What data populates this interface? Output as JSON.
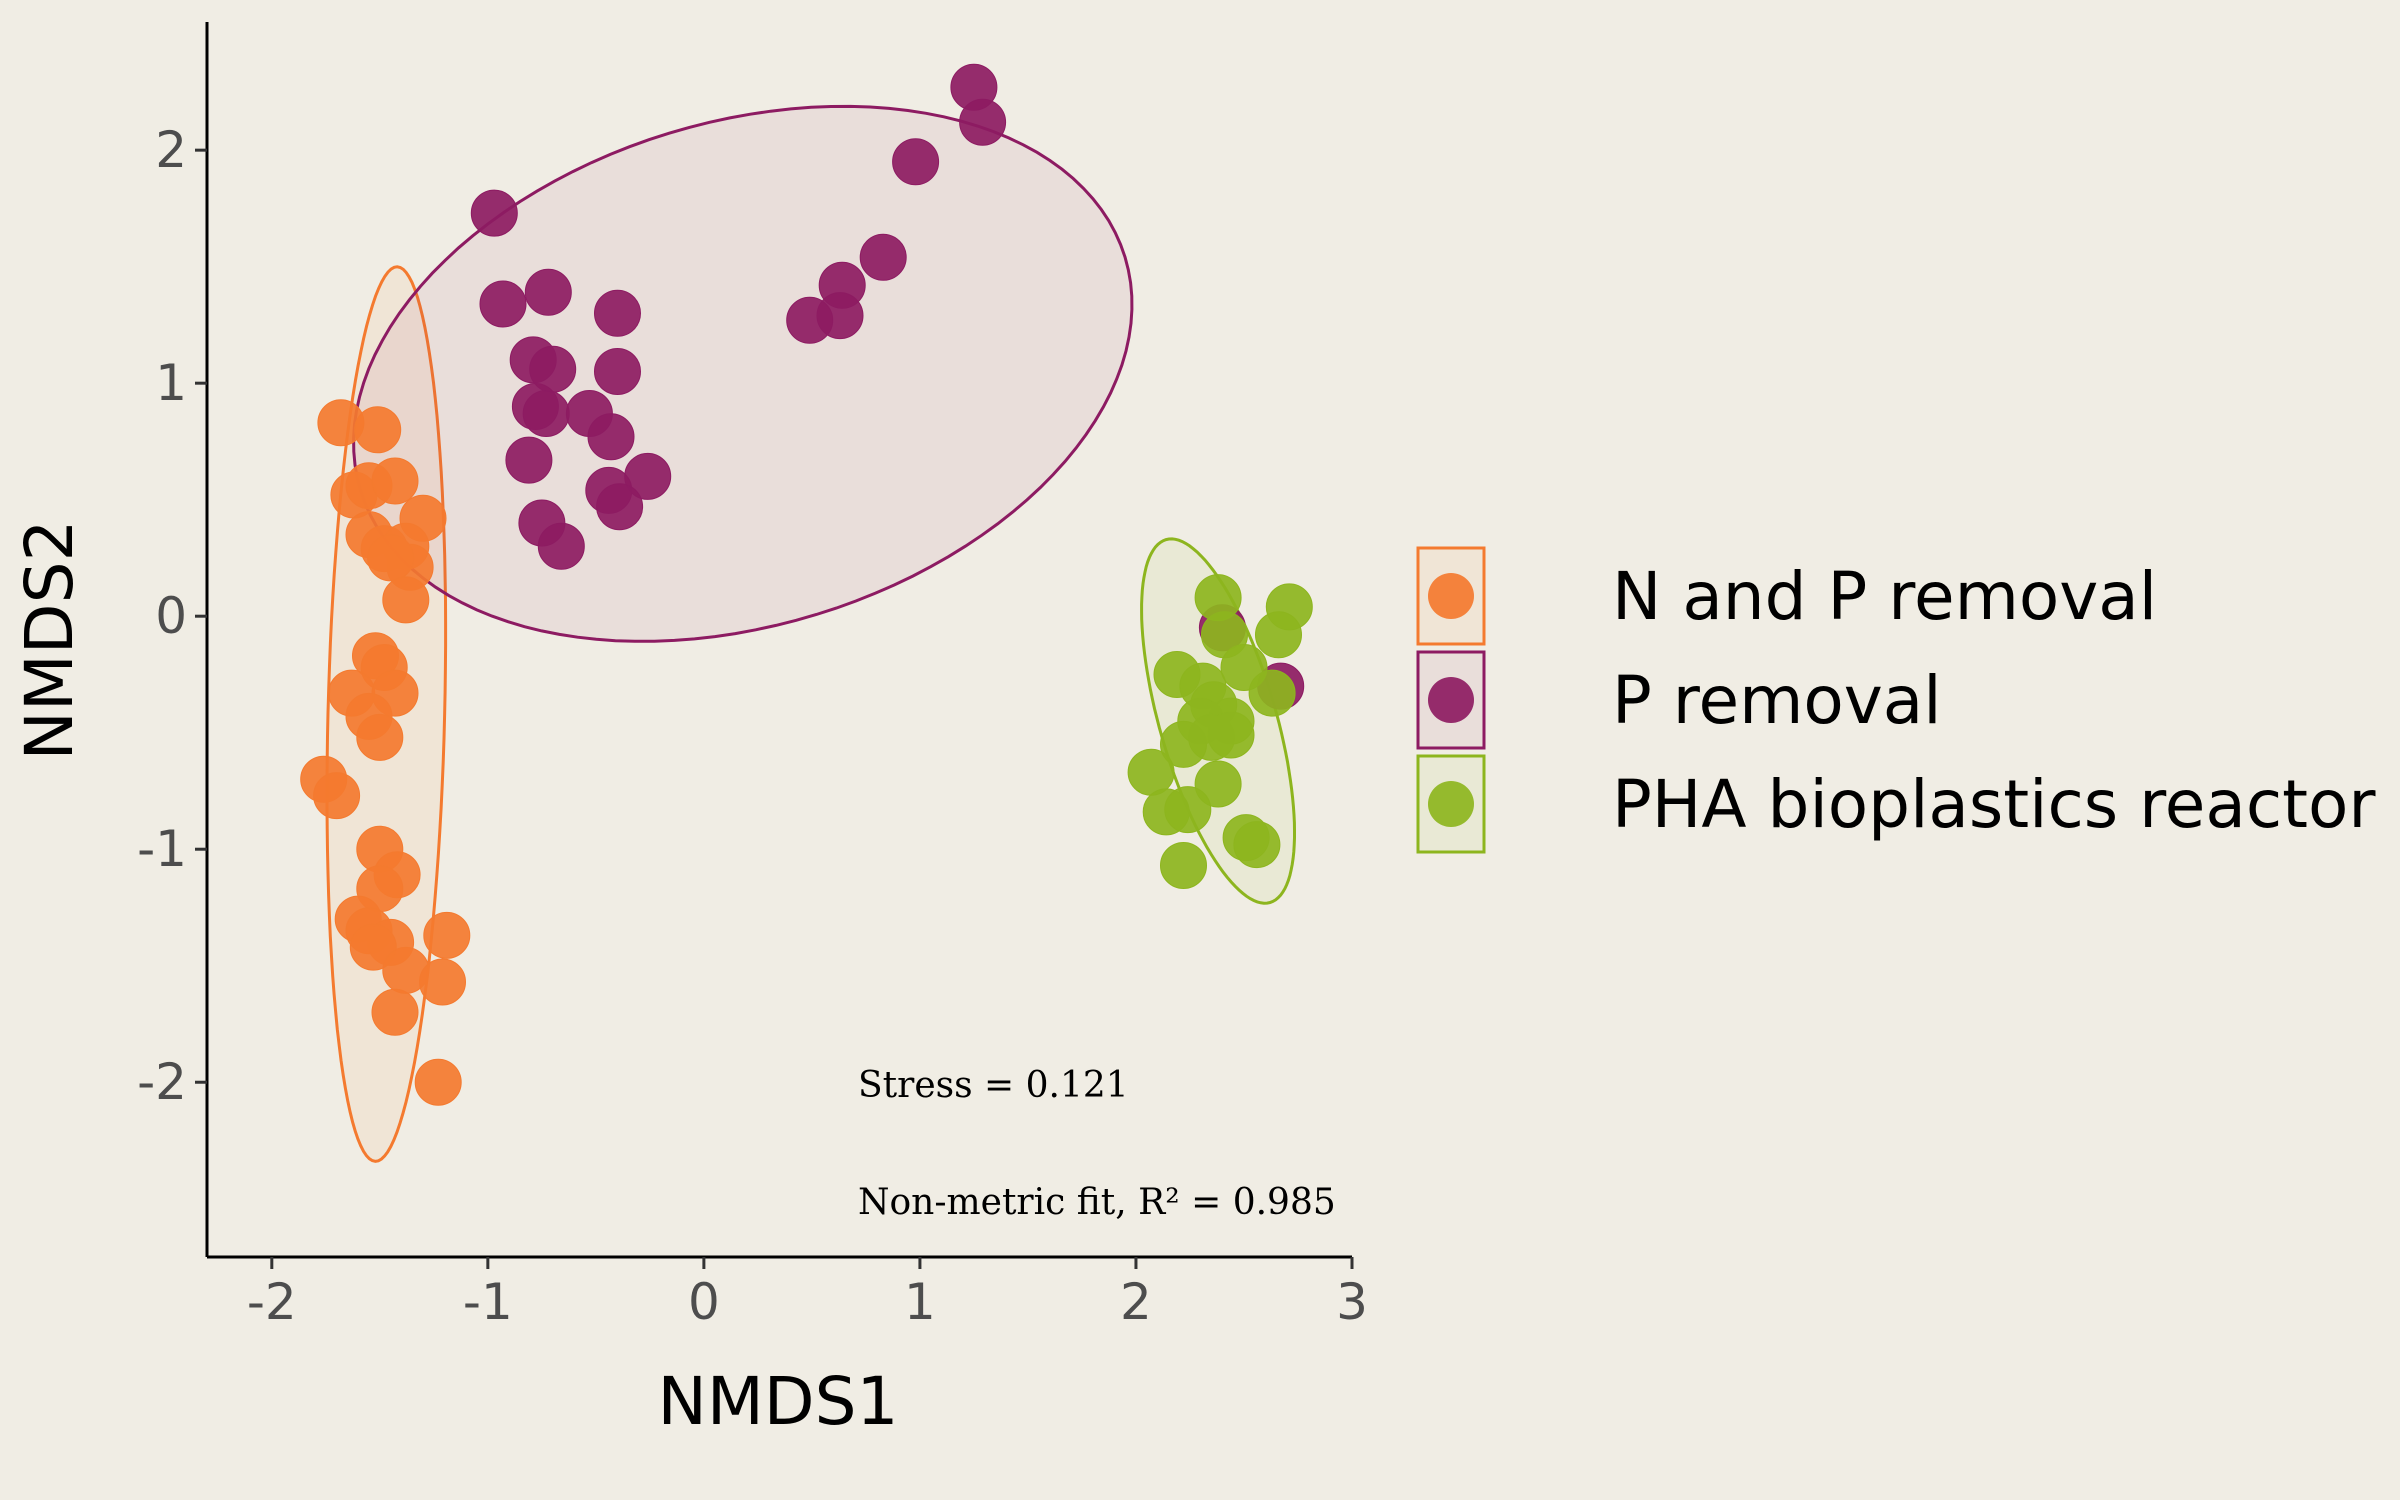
{
  "chart_data": {
    "type": "scatter",
    "xlabel": "NMDS1",
    "ylabel": "NMDS2",
    "xlim": [
      -2.3,
      3.0
    ],
    "ylim": [
      -2.75,
      2.55
    ],
    "xticks": [
      -2,
      -1,
      0,
      1,
      2,
      3
    ],
    "yticks": [
      -2,
      -1,
      0,
      1,
      2
    ],
    "xtick_labels": [
      "-2",
      "-1",
      "0",
      "1",
      "2",
      "3"
    ],
    "ytick_labels": [
      "-2",
      "-1",
      "0",
      "1",
      "2"
    ],
    "grid": false,
    "legend_position": "right",
    "annotations": [
      "Stress = 0.121",
      "Non-metric fit, R² = 0.985"
    ],
    "series": [
      {
        "name": "N and P removal",
        "color": "#f47a2f",
        "ellipse": {
          "cx": -1.47,
          "cy": -0.42,
          "rx": 0.27,
          "ry": 1.92,
          "angle_deg": -1.4
        },
        "points": [
          [
            -1.68,
            0.83
          ],
          [
            -1.51,
            0.8
          ],
          [
            -1.62,
            0.52
          ],
          [
            -1.55,
            0.56
          ],
          [
            -1.43,
            0.58
          ],
          [
            -1.55,
            0.35
          ],
          [
            -1.48,
            0.29
          ],
          [
            -1.3,
            0.42
          ],
          [
            -1.38,
            0.3
          ],
          [
            -1.36,
            0.21
          ],
          [
            -1.45,
            0.25
          ],
          [
            -1.38,
            0.07
          ],
          [
            -1.52,
            -0.17
          ],
          [
            -1.48,
            -0.22
          ],
          [
            -1.63,
            -0.33
          ],
          [
            -1.43,
            -0.33
          ],
          [
            -1.55,
            -0.43
          ],
          [
            -1.5,
            -0.52
          ],
          [
            -1.76,
            -0.7
          ],
          [
            -1.7,
            -0.77
          ],
          [
            -1.5,
            -1.0
          ],
          [
            -1.42,
            -1.11
          ],
          [
            -1.5,
            -1.17
          ],
          [
            -1.6,
            -1.3
          ],
          [
            -1.55,
            -1.35
          ],
          [
            -1.45,
            -1.4
          ],
          [
            -1.53,
            -1.42
          ],
          [
            -1.38,
            -1.52
          ],
          [
            -1.43,
            -1.7
          ],
          [
            -1.19,
            -1.37
          ],
          [
            -1.21,
            -1.57
          ],
          [
            -1.23,
            -2.0
          ]
        ]
      },
      {
        "name": "P removal",
        "color": "#8d1b62",
        "ellipse": {
          "cx": 0.18,
          "cy": 1.04,
          "rx": 1.85,
          "ry": 1.08,
          "angle_deg": 17
        },
        "points": [
          [
            1.25,
            2.27
          ],
          [
            1.29,
            2.12
          ],
          [
            0.98,
            1.95
          ],
          [
            -0.97,
            1.73
          ],
          [
            0.83,
            1.54
          ],
          [
            0.64,
            1.42
          ],
          [
            0.63,
            1.29
          ],
          [
            0.49,
            1.27
          ],
          [
            -0.93,
            1.34
          ],
          [
            -0.72,
            1.39
          ],
          [
            -0.4,
            1.3
          ],
          [
            -0.79,
            1.1
          ],
          [
            -0.7,
            1.06
          ],
          [
            -0.4,
            1.05
          ],
          [
            -0.78,
            0.9
          ],
          [
            -0.73,
            0.87
          ],
          [
            -0.53,
            0.87
          ],
          [
            -0.43,
            0.77
          ],
          [
            -0.81,
            0.67
          ],
          [
            -0.26,
            0.6
          ],
          [
            -0.44,
            0.54
          ],
          [
            -0.39,
            0.47
          ],
          [
            -0.75,
            0.4
          ],
          [
            -0.66,
            0.3
          ],
          [
            2.4,
            -0.05
          ],
          [
            2.67,
            -0.3
          ]
        ]
      },
      {
        "name": "PHA bioplastics reactor",
        "color": "#8db51e",
        "ellipse": {
          "cx": 2.38,
          "cy": -0.45,
          "rx": 0.27,
          "ry": 0.81,
          "angle_deg": 16
        },
        "points": [
          [
            2.38,
            0.08
          ],
          [
            2.71,
            0.04
          ],
          [
            2.66,
            -0.08
          ],
          [
            2.41,
            -0.08
          ],
          [
            2.19,
            -0.25
          ],
          [
            2.31,
            -0.3
          ],
          [
            2.5,
            -0.22
          ],
          [
            2.63,
            -0.33
          ],
          [
            2.36,
            -0.38
          ],
          [
            2.44,
            -0.45
          ],
          [
            2.3,
            -0.45
          ],
          [
            2.35,
            -0.52
          ],
          [
            2.44,
            -0.51
          ],
          [
            2.22,
            -0.55
          ],
          [
            2.07,
            -0.67
          ],
          [
            2.38,
            -0.72
          ],
          [
            2.14,
            -0.84
          ],
          [
            2.24,
            -0.83
          ],
          [
            2.51,
            -0.95
          ],
          [
            2.56,
            -0.98
          ],
          [
            2.22,
            -1.07
          ]
        ]
      }
    ]
  }
}
